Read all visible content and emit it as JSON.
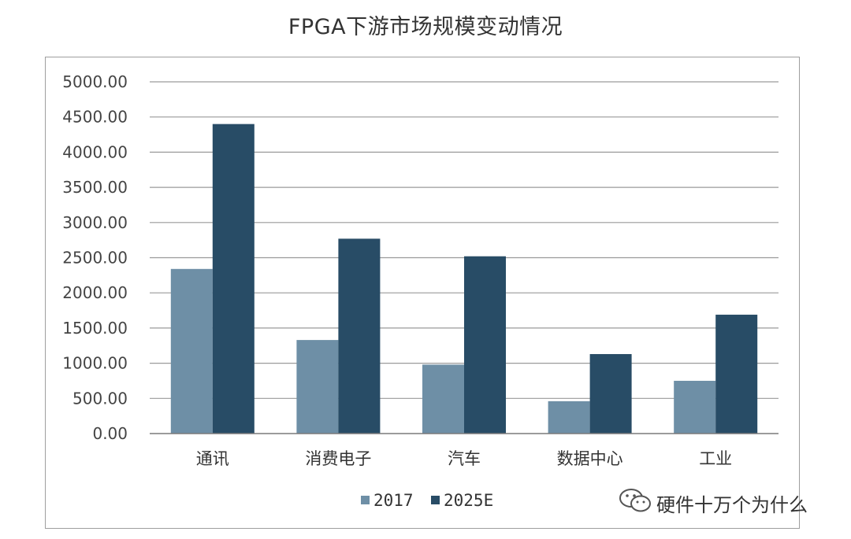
{
  "chart_data": {
    "type": "bar",
    "title": "FPGA下游市场规模变动情况",
    "categories": [
      "通讯",
      "消费电子",
      "汽车",
      "数据中心",
      "工业"
    ],
    "series": [
      {
        "name": "2017",
        "values": [
          2340,
          1330,
          980,
          460,
          750
        ],
        "color": "#6e8fa6"
      },
      {
        "name": "2025E",
        "values": [
          4400,
          2770,
          2520,
          1130,
          1690
        ],
        "color": "#284c66"
      }
    ],
    "yticks": [
      "0.00",
      "500.00",
      "1000.00",
      "1500.00",
      "2000.00",
      "2500.00",
      "3000.00",
      "3500.00",
      "4000.00",
      "4500.00",
      "5000.00"
    ],
    "ylim": [
      0,
      5000
    ],
    "grid": true,
    "legend_position": "bottom"
  },
  "watermark": {
    "text": "硬件十万个为什么",
    "icon": "wechat-icon"
  }
}
